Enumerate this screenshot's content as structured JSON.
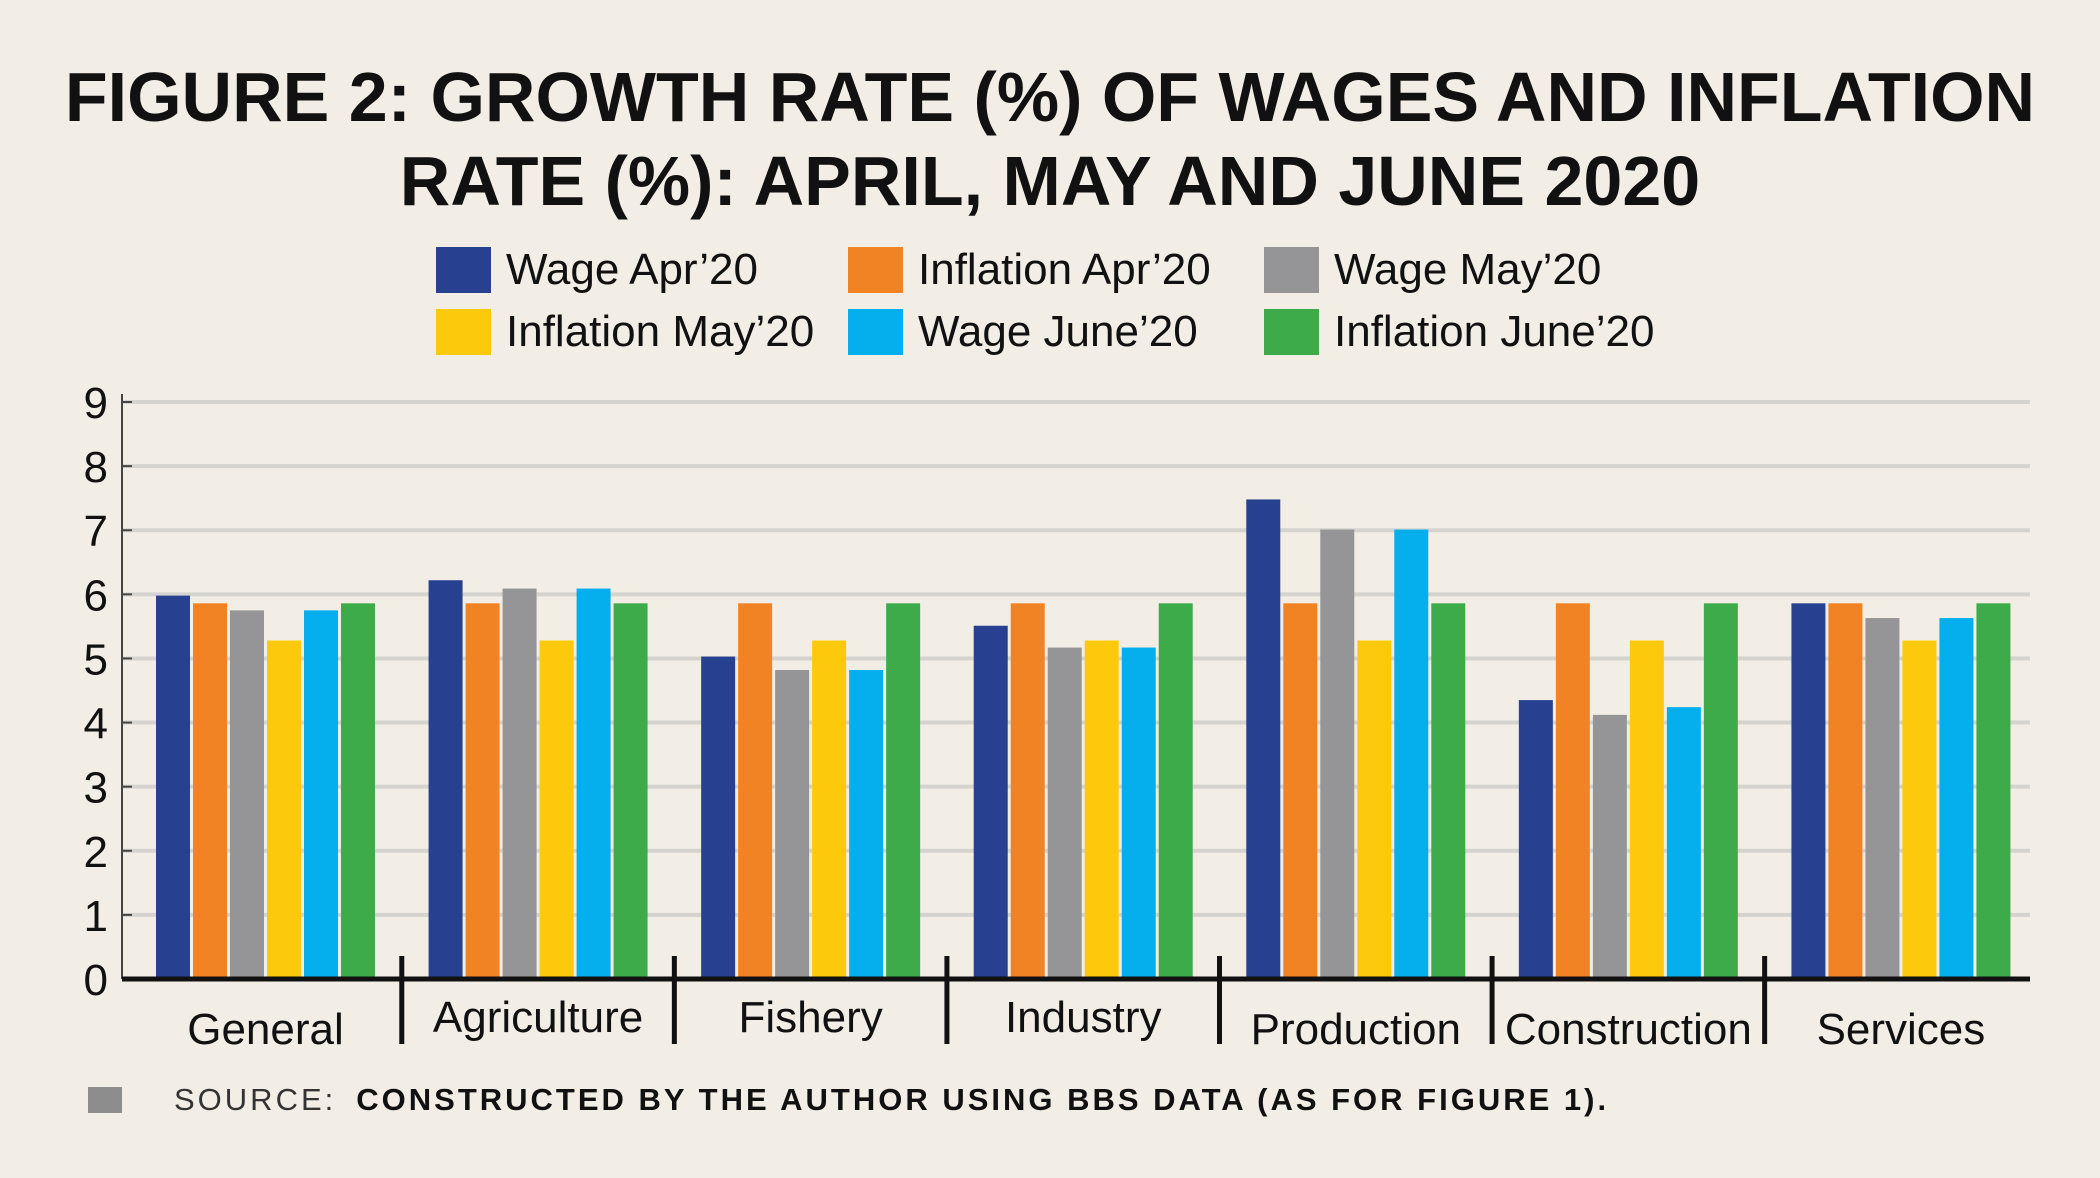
{
  "title_lines": [
    "FIGURE 2: GROWTH RATE (%) OF WAGES AND INFLATION",
    "RATE (%): APRIL, MAY AND JUNE  2020"
  ],
  "source": {
    "label": "SOURCE:",
    "text": "CONSTRUCTED BY THE AUTHOR USING BBS DATA (AS FOR FIGURE 1)."
  },
  "chart_data": {
    "type": "bar",
    "title": "FIGURE 2: GROWTH RATE (%) OF WAGES AND INFLATION RATE (%): APRIL, MAY AND JUNE  2020",
    "xlabel": "",
    "ylabel": "",
    "ylim": [
      0,
      9
    ],
    "yticks": [
      "0",
      "1",
      "2",
      "3",
      "4",
      "5",
      "6",
      "7",
      "8",
      "9"
    ],
    "grid": true,
    "legend_position": "top",
    "categories": [
      "General",
      "Agriculture",
      "Fishery",
      "Industry",
      "Production",
      "Construction",
      "Services"
    ],
    "series": [
      {
        "name": "Wage Apr’20",
        "color": "#27408f",
        "values": [
          5.98,
          6.22,
          5.03,
          5.51,
          7.48,
          4.35,
          5.86
        ]
      },
      {
        "name": "Inflation Apr’20",
        "color": "#f28325",
        "values": [
          5.86,
          5.86,
          5.86,
          5.86,
          5.86,
          5.86,
          5.86
        ]
      },
      {
        "name": "Wage May’20",
        "color": "#959598",
        "values": [
          5.75,
          6.09,
          4.82,
          5.17,
          7.01,
          4.12,
          5.63
        ]
      },
      {
        "name": "Inflation May’20",
        "color": "#fdc90c",
        "values": [
          5.28,
          5.28,
          5.28,
          5.28,
          5.28,
          5.28,
          5.28
        ]
      },
      {
        "name": "Wage June’20",
        "color": "#05aeec",
        "values": [
          5.75,
          6.09,
          4.82,
          5.17,
          7.01,
          4.24,
          5.63
        ]
      },
      {
        "name": "Inflation June’20",
        "color": "#3eab4b",
        "values": [
          5.86,
          5.86,
          5.86,
          5.86,
          5.86,
          5.86,
          5.86
        ]
      }
    ]
  }
}
